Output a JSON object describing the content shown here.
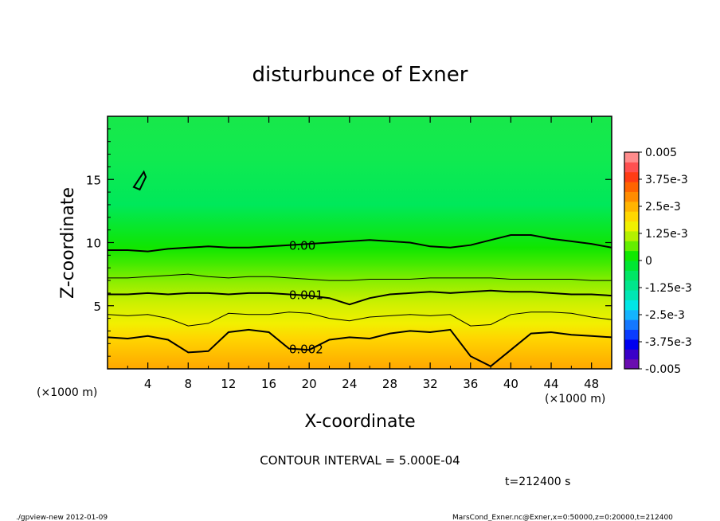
{
  "chart_data": {
    "type": "heatmap",
    "title": "disturbunce of Exner",
    "xlabel": "X-coordinate",
    "ylabel": "Z-coordinate",
    "x_unit_left": "(×1000 m)",
    "x_unit_right": "(×1000 m)",
    "xlim": [
      0,
      50
    ],
    "ylim": [
      0,
      20
    ],
    "x_ticks": [
      4,
      8,
      12,
      16,
      20,
      24,
      28,
      32,
      36,
      40,
      44,
      48
    ],
    "y_ticks": [
      5,
      10,
      15
    ],
    "colorbar": {
      "labels": [
        "0.005",
        "3.75e-3",
        "2.5e-3",
        "1.25e-3",
        "0",
        "-1.25e-3",
        "-2.5e-3",
        "-3.75e-3",
        "-0.005"
      ],
      "min": -0.005,
      "max": 0.005,
      "colors": [
        "#6a0db0",
        "#3a00c8",
        "#0000f0",
        "#0a3cff",
        "#1478ff",
        "#14b4ff",
        "#00e6e6",
        "#00e6b4",
        "#00e68c",
        "#00e664",
        "#00e632",
        "#10e800",
        "#64ee00",
        "#b4f000",
        "#f0f000",
        "#ffd700",
        "#ffb400",
        "#ff8c00",
        "#ff6400",
        "#ff3c14",
        "#ff5050",
        "#ff8c8c"
      ]
    },
    "contours": [
      {
        "label": "0.00",
        "level": 0.0,
        "z": [
          9.4,
          9.4,
          9.3,
          9.5,
          9.6,
          9.7,
          9.6,
          9.6,
          9.7,
          9.8,
          9.9,
          10.0,
          10.1,
          10.2,
          10.1,
          10.0,
          9.7,
          9.6,
          9.8,
          10.2,
          10.6,
          10.6,
          10.3,
          10.1,
          9.9,
          9.6
        ]
      },
      {
        "label": "0.001",
        "level": 0.001,
        "z": [
          5.9,
          5.9,
          6.0,
          5.9,
          6.0,
          6.0,
          5.9,
          6.0,
          6.0,
          5.9,
          5.8,
          5.6,
          5.1,
          5.6,
          5.9,
          6.0,
          6.1,
          6.0,
          6.1,
          6.2,
          6.1,
          6.1,
          6.0,
          5.9,
          5.9,
          5.8
        ]
      },
      {
        "label": "0.002",
        "level": 0.002,
        "z": [
          2.5,
          2.4,
          2.6,
          2.3,
          1.3,
          1.4,
          2.9,
          3.1,
          2.9,
          1.6,
          1.5,
          2.3,
          2.5,
          2.4,
          2.8,
          3.0,
          2.9,
          3.1,
          1.0,
          0.2,
          1.5,
          2.8,
          2.9,
          2.7,
          2.6,
          2.5
        ]
      },
      {
        "label": "",
        "level": 0.0005,
        "z": [
          7.2,
          7.2,
          7.3,
          7.4,
          7.5,
          7.3,
          7.2,
          7.3,
          7.3,
          7.2,
          7.1,
          7.0,
          7.0,
          7.1,
          7.1,
          7.1,
          7.2,
          7.2,
          7.2,
          7.2,
          7.1,
          7.1,
          7.1,
          7.1,
          7.0,
          7.0
        ]
      },
      {
        "label": "",
        "level": 0.0015,
        "z": [
          4.3,
          4.2,
          4.3,
          4.0,
          3.4,
          3.6,
          4.4,
          4.3,
          4.3,
          4.5,
          4.4,
          4.0,
          3.8,
          4.1,
          4.2,
          4.3,
          4.2,
          4.3,
          3.4,
          3.5,
          4.3,
          4.5,
          4.5,
          4.4,
          4.1,
          3.9
        ]
      }
    ],
    "contour_interval": "CONTOUR INTERVAL = 5.000E-04",
    "time": "t=212400 s"
  },
  "footer": {
    "left": "./gpview-new  2012-01-09",
    "right": "MarsCond_Exner.nc@Exner,x=0:50000,z=0:20000,t=212400"
  }
}
